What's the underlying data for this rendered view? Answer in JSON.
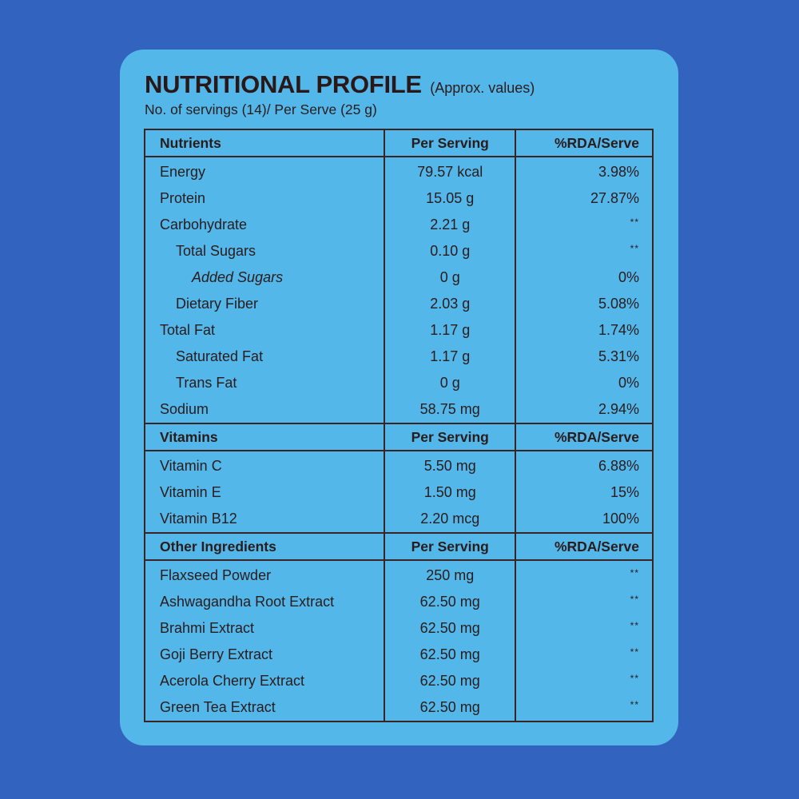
{
  "header": {
    "title": "NUTRITIONAL PROFILE",
    "title_note": "(Approx. values)",
    "subtitle": "No. of servings (14)/ Per Serve (25 g)"
  },
  "colors": {
    "background": "#3263bf",
    "card": "#53b7ea",
    "text": "#2b1c1c"
  },
  "sections": [
    {
      "headers": [
        "Nutrients",
        "Per Serving",
        "%RDA/Serve"
      ],
      "rows": [
        {
          "name": "Energy",
          "amount": "79.57 kcal",
          "rda": "3.98%",
          "indent": 0
        },
        {
          "name": "Protein",
          "amount": "15.05 g",
          "rda": "27.87%",
          "indent": 0
        },
        {
          "name": "Carbohydrate",
          "amount": "2.21 g",
          "rda": "**",
          "indent": 0
        },
        {
          "name": "Total Sugars",
          "amount": "0.10 g",
          "rda": "**",
          "indent": 1
        },
        {
          "name": "Added Sugars",
          "amount": "0 g",
          "rda": "0%",
          "indent": 2
        },
        {
          "name": "Dietary Fiber",
          "amount": "2.03 g",
          "rda": "5.08%",
          "indent": 1
        },
        {
          "name": "Total Fat",
          "amount": "1.17 g",
          "rda": "1.74%",
          "indent": 0
        },
        {
          "name": "Saturated Fat",
          "amount": "1.17 g",
          "rda": "5.31%",
          "indent": 1
        },
        {
          "name": "Trans Fat",
          "amount": "0 g",
          "rda": "0%",
          "indent": 1
        },
        {
          "name": "Sodium",
          "amount": "58.75 mg",
          "rda": "2.94%",
          "indent": 0
        }
      ]
    },
    {
      "headers": [
        "Vitamins",
        "Per Serving",
        "%RDA/Serve"
      ],
      "rows": [
        {
          "name": "Vitamin C",
          "amount": "5.50 mg",
          "rda": "6.88%",
          "indent": 0
        },
        {
          "name": "Vitamin E",
          "amount": "1.50 mg",
          "rda": "15%",
          "indent": 0
        },
        {
          "name": "Vitamin B12",
          "amount": "2.20 mcg",
          "rda": "100%",
          "indent": 0
        }
      ]
    },
    {
      "headers": [
        "Other Ingredients",
        "Per Serving",
        "%RDA/Serve"
      ],
      "rows": [
        {
          "name": "Flaxseed Powder",
          "amount": "250 mg",
          "rda": "**",
          "indent": 0
        },
        {
          "name": "Ashwagandha Root Extract",
          "amount": "62.50 mg",
          "rda": "**",
          "indent": 0
        },
        {
          "name": "Brahmi Extract",
          "amount": "62.50 mg",
          "rda": "**",
          "indent": 0
        },
        {
          "name": "Goji Berry Extract",
          "amount": "62.50 mg",
          "rda": "**",
          "indent": 0
        },
        {
          "name": "Acerola Cherry Extract",
          "amount": "62.50 mg",
          "rda": "**",
          "indent": 0
        },
        {
          "name": "Green Tea Extract",
          "amount": "62.50 mg",
          "rda": "**",
          "indent": 0
        }
      ]
    }
  ]
}
